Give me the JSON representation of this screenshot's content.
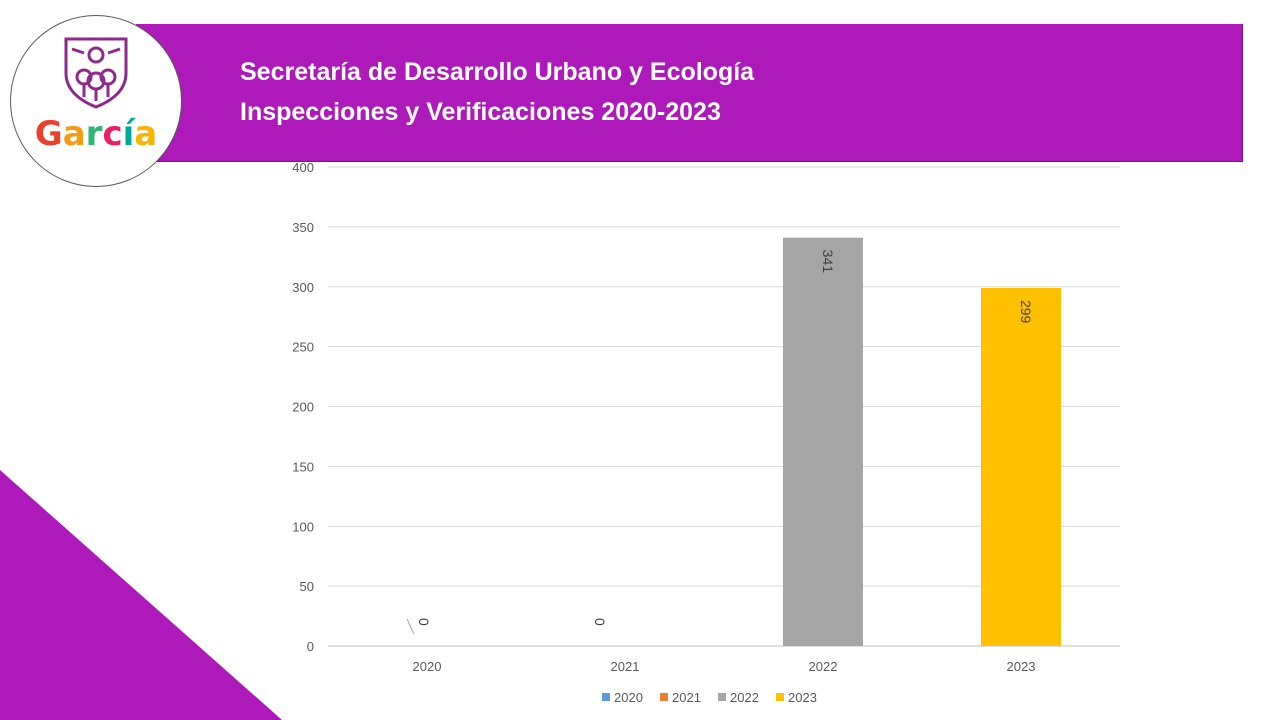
{
  "header": {
    "title_line1": "Secretaría de Desarrollo Urbano y Ecología",
    "title_line2": "Inspecciones y Verificaciones 2020-2023",
    "brand_color": "#ad1ab9"
  },
  "logo": {
    "text": "García",
    "letter_colors": [
      "#e8402a",
      "#f39c12",
      "#2bb673",
      "#e91e63",
      "#00a99d",
      "#f7b500"
    ]
  },
  "chart_data": {
    "type": "bar",
    "categories": [
      "2020",
      "2021",
      "2022",
      "2023"
    ],
    "series": [
      {
        "name": "2020",
        "color": "#5b9bd5",
        "values": [
          0,
          null,
          null,
          null
        ]
      },
      {
        "name": "2021",
        "color": "#ed7d31",
        "values": [
          null,
          0,
          null,
          null
        ]
      },
      {
        "name": "2022",
        "color": "#a5a5a5",
        "values": [
          null,
          null,
          341,
          null
        ]
      },
      {
        "name": "2023",
        "color": "#ffc000",
        "values": [
          null,
          null,
          null,
          299
        ]
      }
    ],
    "data_labels": [
      "0",
      "0",
      "341",
      "299"
    ],
    "ylim": [
      0,
      400
    ],
    "yticks": [
      0,
      50,
      100,
      150,
      200,
      250,
      300,
      350,
      400
    ],
    "grid": true,
    "legend_position": "bottom"
  }
}
